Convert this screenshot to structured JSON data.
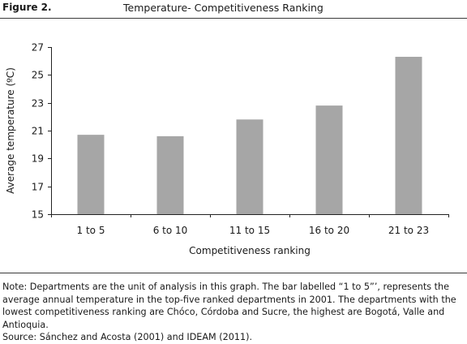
{
  "figure": {
    "label": "Figure 2.",
    "title": "Temperature- Competitiveness Ranking"
  },
  "chart_data": {
    "type": "bar",
    "categories": [
      "1 to 5",
      "6 to 10",
      "11 to 15",
      "16 to 20",
      "21 to 23"
    ],
    "values": [
      20.7,
      20.6,
      21.8,
      22.8,
      26.3
    ],
    "xlabel": "Competitiveness ranking",
    "ylabel": "Average temperature (ºC)",
    "ylim": [
      15,
      27
    ],
    "yticks": [
      15,
      17,
      19,
      21,
      23,
      25,
      27
    ],
    "grid": false,
    "bar_color": "#a6a6a6"
  },
  "note": {
    "text": "Note: Departments are the unit of analysis in this graph. The bar labelled “1 to 5”’, represents the average annual temperature in the top-five ranked departments in 2001. The departments with the lowest competitiveness ranking are Chóco, Córdoba and Sucre, the highest are Bogotá, Valle and Antioquia.",
    "source": "Source: Sánchez and Acosta (2001) and IDEAM (2011)."
  }
}
